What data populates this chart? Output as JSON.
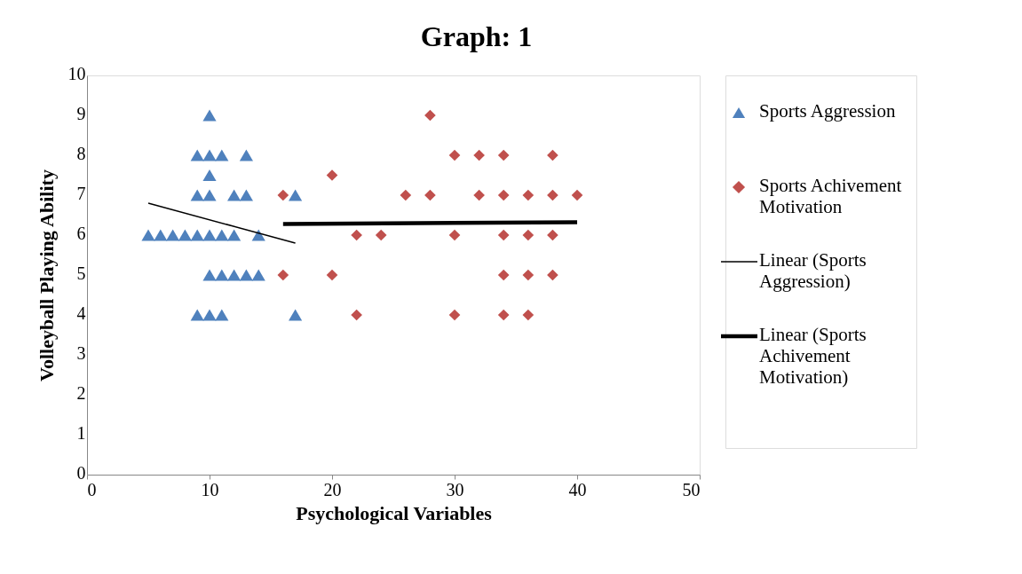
{
  "chart_data": {
    "type": "scatter",
    "title": "Graph: 1",
    "xlabel": "Psychological Variables",
    "ylabel": "Volleyball Playing Ability",
    "xlim": [
      0,
      50
    ],
    "xticks": [
      0,
      10,
      20,
      30,
      40,
      50
    ],
    "ylim": [
      0,
      10
    ],
    "yticks": [
      0,
      1,
      2,
      3,
      4,
      5,
      6,
      7,
      8,
      9,
      10
    ],
    "grid": false,
    "legend": "right",
    "series": [
      {
        "name": "Sports Aggression",
        "marker": "triangle",
        "color": "#4f81bd",
        "x": [
          10,
          9,
          10,
          11,
          13,
          10,
          9,
          10,
          12,
          13,
          17,
          5,
          6,
          7,
          8,
          9,
          10,
          11,
          12,
          14,
          10,
          11,
          12,
          13,
          14,
          9,
          10,
          11,
          17
        ],
        "values": [
          9,
          8,
          8,
          8,
          8,
          7.5,
          7,
          7,
          7,
          7,
          7,
          6,
          6,
          6,
          6,
          6,
          6,
          6,
          6,
          6,
          5,
          5,
          5,
          5,
          5,
          4,
          4,
          4,
          4
        ]
      },
      {
        "name": "Sports Achivement Motivation",
        "marker": "diamond",
        "color": "#c0504d",
        "x": [
          28,
          30,
          32,
          34,
          38,
          20,
          16,
          26,
          28,
          32,
          34,
          36,
          38,
          40,
          22,
          24,
          30,
          34,
          36,
          38,
          16,
          20,
          34,
          36,
          38,
          22,
          30,
          34,
          36
        ],
        "values": [
          9,
          8,
          8,
          8,
          8,
          7.5,
          7,
          7,
          7,
          7,
          7,
          7,
          7,
          7,
          6,
          6,
          6,
          6,
          6,
          6,
          5,
          5,
          5,
          5,
          5,
          4,
          4,
          4,
          4
        ]
      },
      {
        "name": "Linear (Sports Aggression)",
        "type": "line",
        "color": "#000000",
        "x": [
          5,
          17
        ],
        "values": [
          6.8,
          5.8
        ]
      },
      {
        "name": "Linear (Sports Achivement Motivation)",
        "type": "line",
        "color": "#000000",
        "x": [
          16,
          40
        ],
        "values": [
          6.28,
          6.32
        ]
      }
    ]
  }
}
